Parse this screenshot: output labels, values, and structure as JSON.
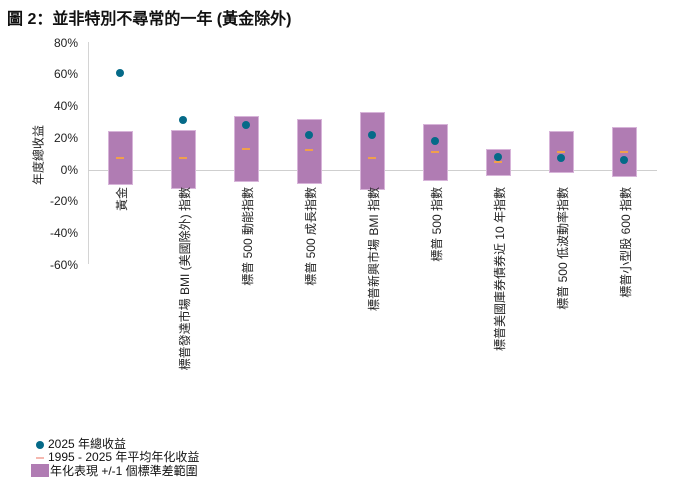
{
  "title": "圖 2：並非特別不尋常的一年 (黃金除外)",
  "colors": {
    "range_bar": "#b07cb3",
    "total_return_dot": "#056a88",
    "average_dash": "#f0a04b",
    "zero_line": "#cfcfcf"
  },
  "axis": {
    "ylabel": "年度總收益",
    "ticks": [
      "80%",
      "60%",
      "40%",
      "20%",
      "0%",
      "-20%",
      "-40%",
      "-60%"
    ]
  },
  "legend": {
    "dot": "2025 年總收益",
    "dash": "1995 - 2025 年平均年化收益",
    "box": "年化表現 +/-1 個標準差範圍"
  },
  "categories": [
    "黃金",
    "標普發達市場 BMI (美國除外) 指數",
    "標普 500 動能指數",
    "標普 500 成長指數",
    "標普新興市場 BMI 指數",
    "標普 500 指數",
    "標普美國庫券債券近 10 年指數",
    "標普 500 低波動率指數",
    "標普小型股 600 指數"
  ],
  "chart_data": {
    "type": "bar",
    "title": "圖 2：並非特別不尋常的一年 (黃金除外)",
    "xlabel": "",
    "ylabel": "年度總收益",
    "ylim": [
      -60,
      80
    ],
    "yticks": [
      80,
      60,
      40,
      20,
      0,
      -20,
      -40,
      -60
    ],
    "grid": false,
    "legend_position": "bottom-left",
    "categories": [
      "黃金",
      "標普發達市場 BMI (美國除外) 指數",
      "標普 500 動能指數",
      "標普 500 成長指數",
      "標普新興市場 BMI 指數",
      "標普 500 指數",
      "標普美國庫券債券近 10 年指數",
      "標普 500 低波動率指數",
      "標普小型股 600 指數"
    ],
    "series": [
      {
        "name": "2025 年總收益",
        "kind": "scatter",
        "values": [
          61,
          31,
          28,
          22,
          22,
          18,
          8,
          7,
          6
        ]
      },
      {
        "name": "1995 - 2025 年平均年化收益",
        "kind": "marker-dash",
        "values": [
          7,
          7,
          13,
          12,
          7,
          11,
          5,
          11,
          11
        ]
      },
      {
        "name": "年化表現 +/-1 個標準差範圍 (上限)",
        "kind": "range-high",
        "values": [
          24,
          25,
          34,
          32,
          36,
          29,
          13,
          24,
          27
        ]
      },
      {
        "name": "年化表現 +/-1 個標準差範圍 (下限)",
        "kind": "range-low",
        "values": [
          -10,
          -12,
          -8,
          -9,
          -13,
          -7,
          -4,
          -2,
          -5
        ]
      }
    ]
  }
}
